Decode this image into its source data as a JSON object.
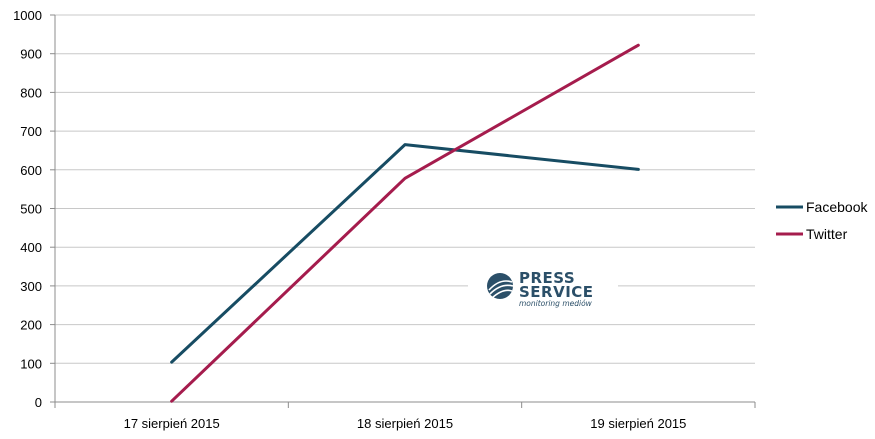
{
  "chart_data": {
    "type": "line",
    "categories": [
      "17 sierpień 2015",
      "18 sierpień 2015",
      "19 sierpień 2015"
    ],
    "series": [
      {
        "name": "Facebook",
        "values": [
          103,
          665,
          601
        ],
        "color": "#174c63"
      },
      {
        "name": "Twitter",
        "values": [
          2,
          578,
          922
        ],
        "color": "#a51c4d"
      }
    ],
    "ylim": [
      0,
      1000
    ],
    "yticks": [
      0,
      100,
      200,
      300,
      400,
      500,
      600,
      700,
      800,
      900,
      1000
    ],
    "grid": true,
    "legend": "right"
  },
  "watermark": {
    "title_line1": "PRESS",
    "title_line2": "SERVICE",
    "subtitle": "monitoring mediów",
    "color": "#2b4f68"
  }
}
